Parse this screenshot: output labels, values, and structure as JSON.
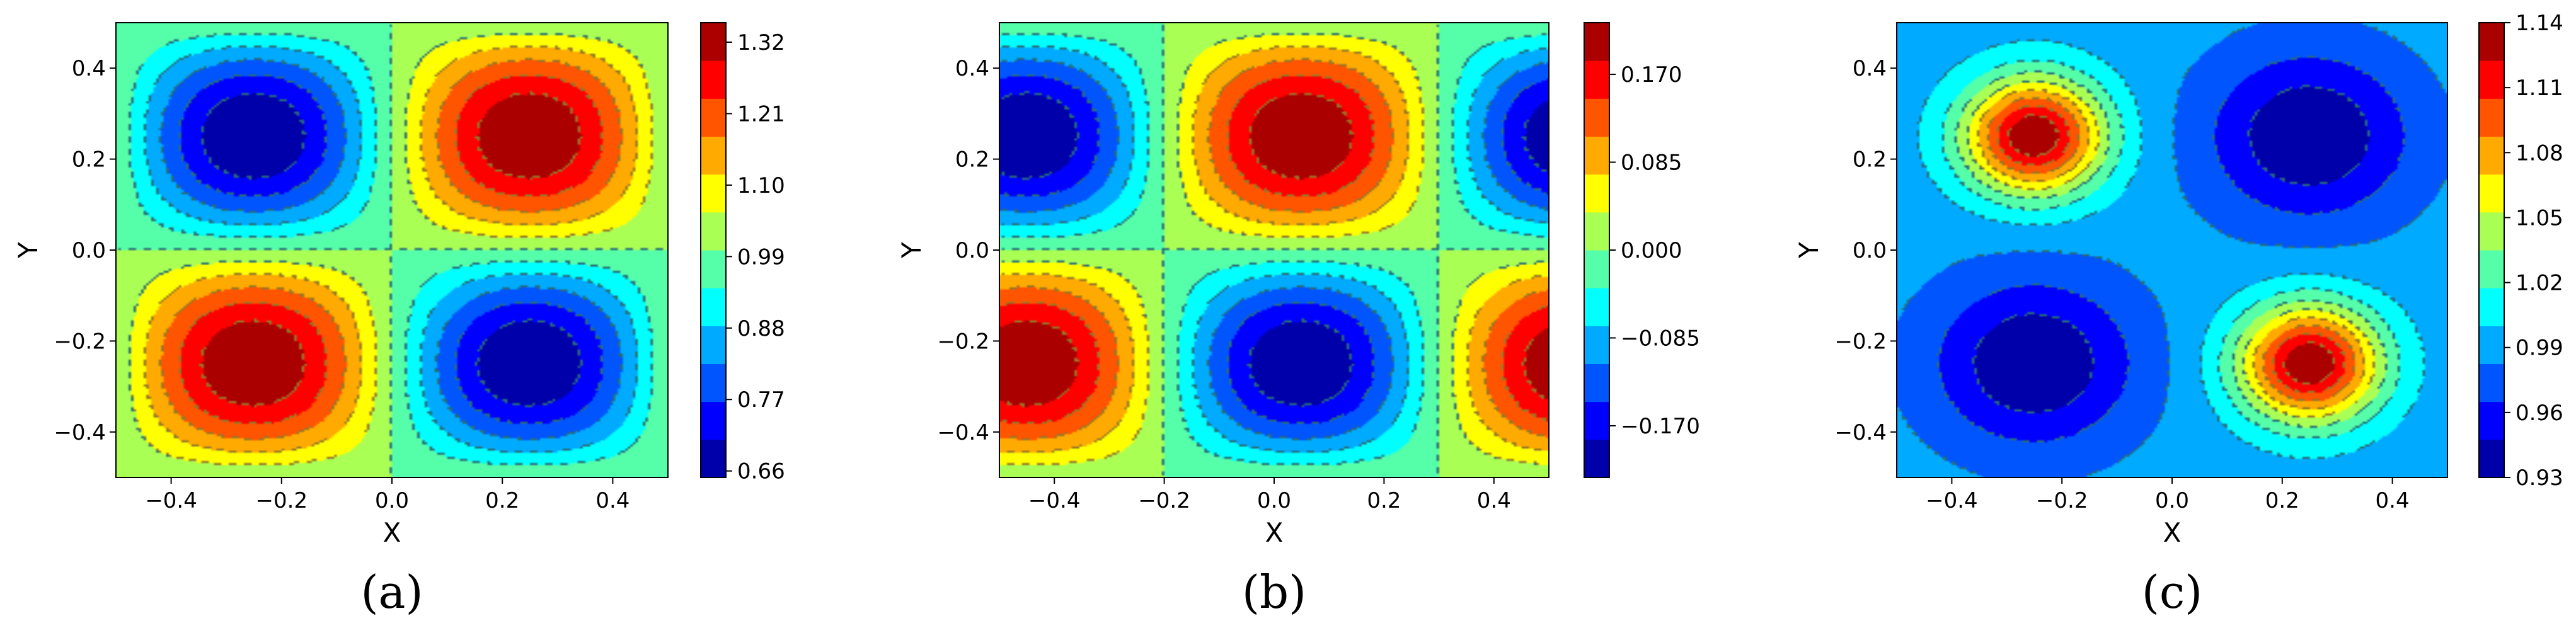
{
  "chart_data": [
    {
      "type": "heatmap",
      "panel_label": "(a)",
      "xlabel": "X",
      "ylabel": "Y",
      "xlim": [
        -0.5,
        0.5
      ],
      "ylim": [
        -0.5,
        0.5
      ],
      "x_ticks": [
        "−0.4",
        "−0.2",
        "0.0",
        "0.2",
        "0.4"
      ],
      "y_ticks": [
        "0.4",
        "0.2",
        "0.0",
        "−0.2",
        "−0.4"
      ],
      "colormap": "jet",
      "vmin": 0.65,
      "vmax": 1.35,
      "colorbar_ticks": [
        "1.32",
        "1.21",
        "1.10",
        "0.99",
        "0.88",
        "0.77",
        "0.66"
      ],
      "colorbar_tick_values": [
        1.32,
        1.21,
        1.1,
        0.99,
        0.88,
        0.77,
        0.66
      ],
      "contour_lines": "dashed",
      "field": {
        "base": 1.0,
        "amplitude": 0.35,
        "shift_x": 0.0,
        "pattern": "sin(2πx)·sin(2πy)"
      }
    },
    {
      "type": "heatmap",
      "panel_label": "(b)",
      "xlabel": "X",
      "ylabel": "Y",
      "xlim": [
        -0.5,
        0.5
      ],
      "ylim": [
        -0.5,
        0.5
      ],
      "x_ticks": [
        "−0.4",
        "−0.2",
        "0.0",
        "0.2",
        "0.4"
      ],
      "y_ticks": [
        "0.4",
        "0.2",
        "0.0",
        "−0.2",
        "−0.4"
      ],
      "colormap": "jet",
      "vmin": -0.22,
      "vmax": 0.22,
      "colorbar_ticks": [
        "0.170",
        "0.085",
        "0.000",
        "−0.085",
        "−0.170"
      ],
      "colorbar_tick_values": [
        0.17,
        0.085,
        0.0,
        -0.085,
        -0.17
      ],
      "contour_lines": "dashed",
      "field": {
        "base": 0.0,
        "amplitude": 0.22,
        "shift_x": 0.2,
        "pattern": "sin(2π(x+0.2))·sin(2πy)"
      }
    },
    {
      "type": "heatmap",
      "panel_label": "(c)",
      "xlabel": "X",
      "ylabel": "Y",
      "xlim": [
        -0.5,
        0.5
      ],
      "ylim": [
        -0.5,
        0.5
      ],
      "x_ticks": [
        "−0.4",
        "−0.2",
        "0.0",
        "0.2",
        "0.4"
      ],
      "y_ticks": [
        "0.4",
        "0.2",
        "0.0",
        "−0.2",
        "−0.4"
      ],
      "colormap": "jet",
      "vmin": 0.93,
      "vmax": 1.14,
      "colorbar_ticks": [
        "1.14",
        "1.11",
        "1.08",
        "1.05",
        "1.02",
        "0.99",
        "0.96",
        "0.93"
      ],
      "colorbar_tick_values": [
        1.14,
        1.11,
        1.08,
        1.05,
        1.02,
        0.99,
        0.96,
        0.93
      ],
      "contour_lines": "dashed",
      "field": {
        "base": 0.99,
        "peak_amplitude": 0.15,
        "trough_amplitude": 0.06,
        "pattern": "peaks at (−0.25,0.25),(0.25,−0.25); troughs at (0.25,0.25),(−0.25,−0.25)"
      }
    }
  ]
}
